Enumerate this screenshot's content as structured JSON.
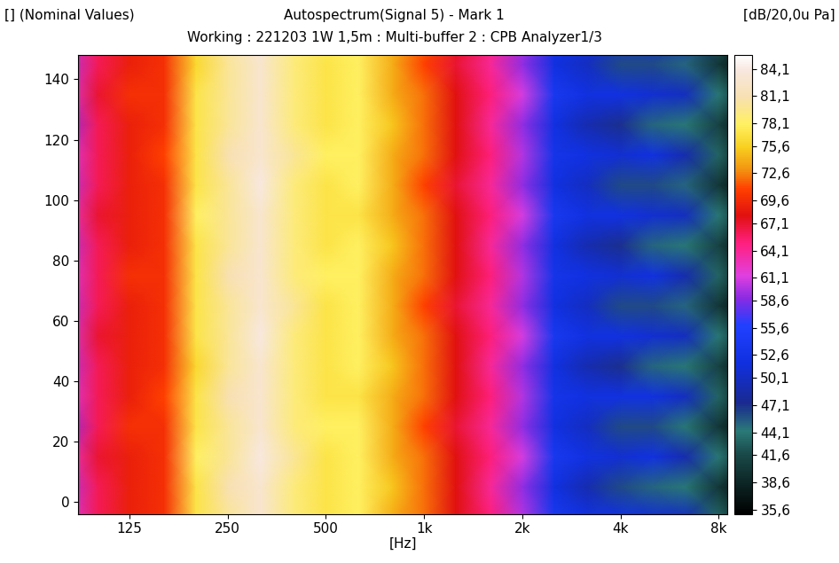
{
  "chart_data": {
    "type": "heatmap",
    "title": "Autospectrum(Signal 5) - Mark 1",
    "subtitle": "Working : 221203 1W 1,5m : Multi-buffer 2 : CPB Analyzer1/3",
    "y_label": "[] (Nominal Values)",
    "x_label": "[Hz]",
    "colorbar_label": "[dB/20,0u Pa]",
    "log": "x",
    "x": [
      80,
      100,
      125,
      160,
      200,
      250,
      315,
      400,
      500,
      630,
      800,
      1000,
      1250,
      1600,
      2000,
      2500,
      3150,
      4000,
      5000,
      6300,
      8000,
      10000
    ],
    "y": [
      -5,
      5,
      15,
      25,
      35,
      45,
      55,
      65,
      75,
      85,
      95,
      105,
      115,
      125,
      135,
      145,
      155
    ],
    "cells": [
      [
        61,
        66,
        69,
        70,
        77,
        80,
        83,
        79,
        77,
        78,
        74,
        72,
        68,
        65,
        60,
        54,
        52,
        52,
        51,
        50,
        43,
        36
      ],
      [
        60,
        66,
        69,
        70,
        77,
        81,
        83,
        79,
        77,
        78,
        75,
        72,
        68,
        64,
        59,
        52,
        49,
        46,
        45,
        44,
        40,
        36
      ],
      [
        62,
        67,
        69,
        70,
        78,
        80,
        84,
        80,
        77,
        78,
        74,
        72,
        68,
        65,
        61,
        54,
        52,
        51,
        52,
        49,
        44,
        37
      ],
      [
        59,
        66,
        70,
        70,
        77,
        80,
        83,
        79,
        78,
        78,
        74,
        71,
        67,
        64,
        59,
        52,
        50,
        46,
        46,
        44,
        40,
        36
      ],
      [
        61,
        66,
        69,
        71,
        77,
        81,
        83,
        79,
        77,
        77,
        74,
        72,
        68,
        65,
        60,
        53,
        52,
        52,
        52,
        50,
        43,
        36
      ],
      [
        60,
        66,
        69,
        70,
        76,
        80,
        83,
        79,
        77,
        78,
        75,
        72,
        68,
        64,
        59,
        52,
        49,
        47,
        45,
        44,
        41,
        36
      ],
      [
        61,
        67,
        69,
        70,
        77,
        80,
        84,
        79,
        77,
        78,
        74,
        72,
        68,
        65,
        61,
        54,
        52,
        52,
        51,
        50,
        44,
        37
      ],
      [
        60,
        66,
        69,
        70,
        77,
        80,
        83,
        80,
        77,
        78,
        74,
        71,
        67,
        64,
        59,
        52,
        50,
        46,
        46,
        45,
        40,
        36
      ],
      [
        61,
        66,
        70,
        70,
        77,
        81,
        83,
        79,
        78,
        78,
        74,
        72,
        68,
        65,
        60,
        53,
        52,
        51,
        52,
        49,
        43,
        36
      ],
      [
        60,
        66,
        69,
        70,
        77,
        80,
        83,
        79,
        77,
        78,
        75,
        72,
        68,
        64,
        59,
        52,
        49,
        47,
        45,
        44,
        41,
        36
      ],
      [
        62,
        67,
        69,
        70,
        78,
        80,
        83,
        79,
        77,
        77,
        74,
        72,
        68,
        65,
        61,
        54,
        52,
        52,
        51,
        50,
        44,
        37
      ],
      [
        60,
        66,
        69,
        70,
        77,
        80,
        84,
        79,
        77,
        78,
        74,
        71,
        67,
        64,
        59,
        52,
        50,
        46,
        46,
        45,
        40,
        36
      ],
      [
        61,
        66,
        69,
        71,
        77,
        81,
        83,
        80,
        78,
        78,
        74,
        72,
        68,
        65,
        60,
        53,
        52,
        51,
        52,
        49,
        43,
        36
      ],
      [
        59,
        66,
        69,
        70,
        77,
        80,
        83,
        79,
        77,
        78,
        75,
        72,
        68,
        64,
        59,
        52,
        49,
        47,
        45,
        44,
        41,
        36
      ],
      [
        61,
        67,
        70,
        70,
        77,
        80,
        83,
        79,
        77,
        78,
        74,
        72,
        68,
        65,
        61,
        54,
        52,
        52,
        51,
        50,
        44,
        37
      ],
      [
        60,
        66,
        69,
        70,
        76,
        80,
        83,
        79,
        77,
        78,
        74,
        71,
        67,
        64,
        59,
        52,
        50,
        46,
        46,
        45,
        40,
        36
      ],
      [
        61,
        66,
        69,
        70,
        77,
        81,
        84,
        79,
        78,
        78,
        74,
        72,
        68,
        65,
        60,
        53,
        52,
        51,
        52,
        49,
        43,
        36
      ]
    ],
    "xlim": [
      87,
      8500
    ],
    "ylim": [
      -4,
      148
    ],
    "xticks": [
      125,
      250,
      500,
      {
        "value": 1000,
        "label": "1k"
      },
      {
        "value": 2000,
        "label": "2k"
      },
      {
        "value": 4000,
        "label": "4k"
      },
      {
        "value": 8000,
        "label": "8k"
      }
    ],
    "yticks": [
      0,
      20,
      40,
      60,
      80,
      100,
      120,
      140
    ],
    "colorbar_range": [
      35.1,
      85.6
    ],
    "colorbar_ticks": [
      {
        "value": 84.1,
        "label": "84,1"
      },
      {
        "value": 81.1,
        "label": "81,1"
      },
      {
        "value": 78.1,
        "label": "78,1"
      },
      {
        "value": 75.6,
        "label": "75,6"
      },
      {
        "value": 72.6,
        "label": "72,6"
      },
      {
        "value": 69.6,
        "label": "69,6"
      },
      {
        "value": 67.1,
        "label": "67,1"
      },
      {
        "value": 64.1,
        "label": "64,1"
      },
      {
        "value": 61.1,
        "label": "61,1"
      },
      {
        "value": 58.6,
        "label": "58,6"
      },
      {
        "value": 55.6,
        "label": "55,6"
      },
      {
        "value": 52.6,
        "label": "52,6"
      },
      {
        "value": 50.1,
        "label": "50,1"
      },
      {
        "value": 47.1,
        "label": "47,1"
      },
      {
        "value": 44.1,
        "label": "44,1"
      },
      {
        "value": 41.6,
        "label": "41,6"
      },
      {
        "value": 38.6,
        "label": "38,6"
      },
      {
        "value": 35.6,
        "label": "35,6"
      }
    ]
  }
}
